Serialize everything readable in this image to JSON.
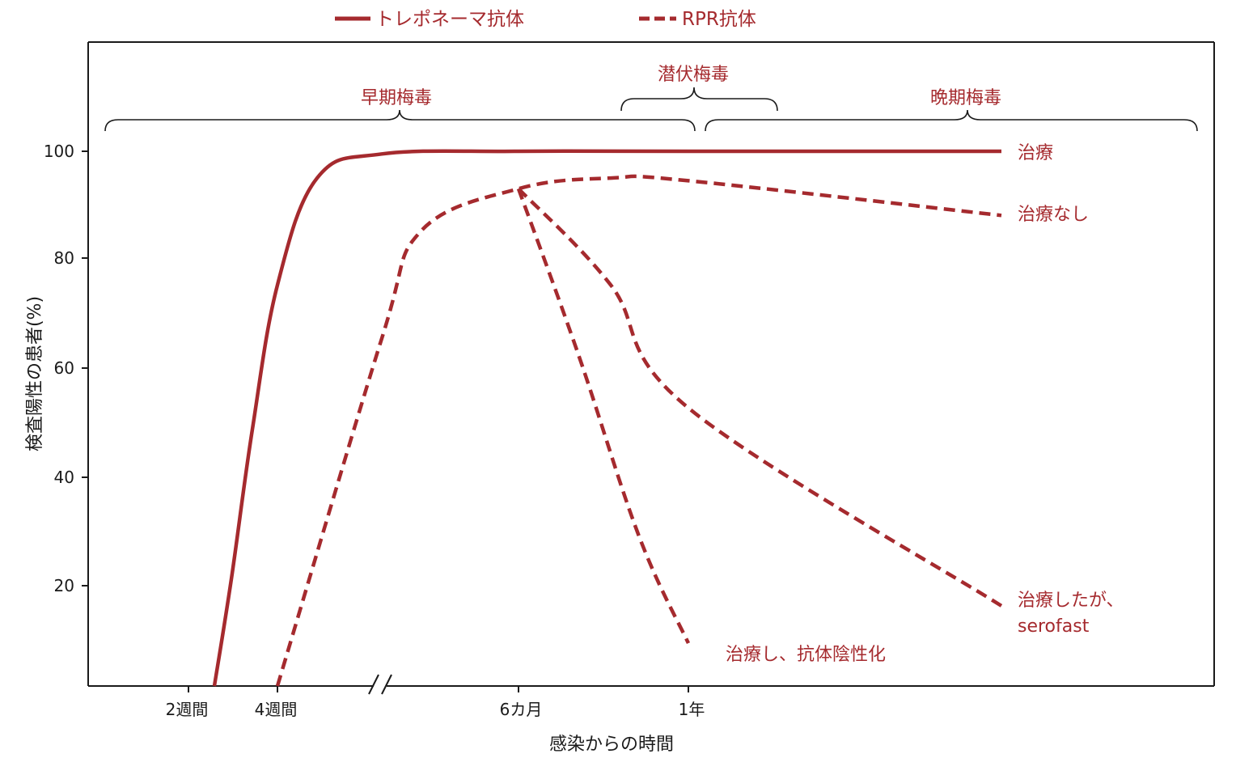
{
  "chart_data": {
    "type": "line",
    "title": "",
    "xlabel": "感染からの時間",
    "ylabel": "検査陽性の患者(%)",
    "ylim": [
      0,
      100
    ],
    "y_ticks": [
      "20",
      "40",
      "60",
      "80",
      "100"
    ],
    "x_ticks": [
      "2週間",
      "4週間",
      "6カ月",
      "1年"
    ],
    "legend": [
      "トレポネーマ抗体",
      "RPR抗体"
    ],
    "legend_position": "top-center",
    "colors": {
      "series": "#a52a2e",
      "axis": "#1a1a1a"
    },
    "stages": [
      "早期梅毒",
      "潜伏梅毒",
      "晩期梅毒"
    ],
    "series": [
      {
        "name": "トレポネーマ抗体",
        "style": "solid",
        "label": "治療",
        "points": [
          [
            "2.5週",
            0
          ],
          [
            "3週",
            20
          ],
          [
            "3.5週",
            48
          ],
          [
            "4週",
            75
          ],
          [
            "5週",
            95
          ],
          [
            "6週",
            99.5
          ],
          [
            "6カ月",
            100
          ],
          [
            "1年",
            100
          ],
          [
            "晩期",
            100
          ]
        ]
      },
      {
        "name": "RPR抗体",
        "style": "dashed",
        "label": "治療なし",
        "points": [
          [
            "4週",
            0
          ],
          [
            "6週",
            65
          ],
          [
            "3カ月",
            85
          ],
          [
            "6カ月",
            93
          ],
          [
            "9カ月",
            95
          ],
          [
            "1年",
            94.5
          ],
          [
            "晩期",
            88
          ]
        ]
      },
      {
        "name": "RPR抗体",
        "style": "dashed",
        "label": "治療し、抗体陰性化",
        "points": [
          [
            "6カ月",
            93
          ],
          [
            "8カ月",
            62
          ],
          [
            "10カ月",
            28
          ],
          [
            "1年",
            8
          ]
        ]
      },
      {
        "name": "RPR抗体",
        "style": "dashed",
        "label_lines": [
          "治療したが、",
          "serofast"
        ],
        "points": [
          [
            "6カ月",
            93
          ],
          [
            "9カ月",
            75
          ],
          [
            "1年",
            52
          ],
          [
            "晩期",
            15
          ]
        ]
      }
    ]
  }
}
